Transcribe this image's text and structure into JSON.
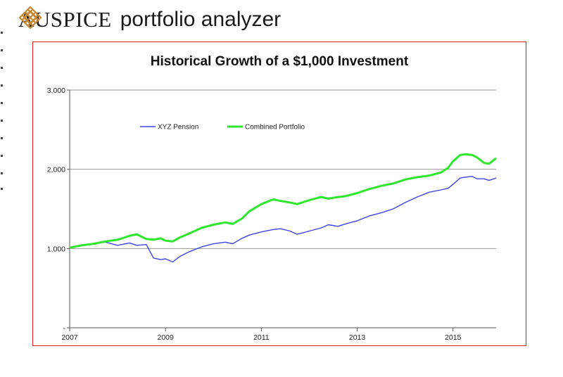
{
  "header": {
    "brand": "AUSPICE",
    "subtitle": "portfolio analyzer",
    "logo_icon": "knot-emblem-icon",
    "logo_color": "#c8862e"
  },
  "colors": {
    "frame": "#e21b1b",
    "grid": "#9a9a9a",
    "axis": "#555555"
  },
  "chart_data": {
    "type": "line",
    "title": "Historical Growth of a $1,000 Investment",
    "xlabel": "",
    "ylabel": "",
    "xlim": [
      2007,
      2015.9
    ],
    "ylim": [
      0,
      3000
    ],
    "yticks": [
      {
        "value": 0,
        "label": "-"
      },
      {
        "value": 1000,
        "label": "1,000"
      },
      {
        "value": 2000,
        "label": "2,000"
      },
      {
        "value": 3000,
        "label": "3,000"
      }
    ],
    "xticks": [
      {
        "value": 2007,
        "label": "2007"
      },
      {
        "value": 2009,
        "label": "2009"
      },
      {
        "value": 2011,
        "label": "2011"
      },
      {
        "value": 2013,
        "label": "2013"
      },
      {
        "value": 2015,
        "label": "2015"
      }
    ],
    "grid": true,
    "legend": "top-left",
    "series": [
      {
        "name": "XYZ Pension",
        "color": "#3b45e6",
        "x": [
          2007.0,
          2007.25,
          2007.5,
          2007.75,
          2008.0,
          2008.25,
          2008.4,
          2008.6,
          2008.75,
          2008.9,
          2009.0,
          2009.15,
          2009.3,
          2009.5,
          2009.75,
          2010.0,
          2010.25,
          2010.4,
          2010.6,
          2010.75,
          2011.0,
          2011.25,
          2011.4,
          2011.6,
          2011.75,
          2012.0,
          2012.25,
          2012.4,
          2012.6,
          2012.75,
          2013.0,
          2013.25,
          2013.5,
          2013.75,
          2014.0,
          2014.25,
          2014.5,
          2014.75,
          2014.9,
          2015.0,
          2015.15,
          2015.25,
          2015.4,
          2015.5,
          2015.65,
          2015.75,
          2015.9
        ],
        "values": [
          1010,
          1040,
          1060,
          1080,
          1040,
          1070,
          1040,
          1050,
          880,
          860,
          870,
          830,
          900,
          960,
          1020,
          1060,
          1080,
          1060,
          1130,
          1170,
          1210,
          1240,
          1250,
          1220,
          1180,
          1220,
          1260,
          1300,
          1280,
          1310,
          1350,
          1410,
          1450,
          1500,
          1580,
          1650,
          1710,
          1740,
          1760,
          1810,
          1890,
          1900,
          1910,
          1880,
          1880,
          1860,
          1890
        ]
      },
      {
        "name": "Combined Portfolio",
        "color": "#2ee82e",
        "x": [
          2007.0,
          2007.25,
          2007.5,
          2007.75,
          2008.0,
          2008.25,
          2008.4,
          2008.6,
          2008.75,
          2008.9,
          2009.0,
          2009.15,
          2009.3,
          2009.5,
          2009.75,
          2010.0,
          2010.25,
          2010.4,
          2010.6,
          2010.75,
          2011.0,
          2011.25,
          2011.4,
          2011.6,
          2011.75,
          2012.0,
          2012.25,
          2012.4,
          2012.6,
          2012.75,
          2013.0,
          2013.25,
          2013.5,
          2013.75,
          2014.0,
          2014.25,
          2014.5,
          2014.75,
          2014.9,
          2015.0,
          2015.15,
          2015.25,
          2015.4,
          2015.5,
          2015.65,
          2015.75,
          2015.9
        ],
        "values": [
          1010,
          1040,
          1060,
          1090,
          1110,
          1160,
          1180,
          1120,
          1110,
          1130,
          1100,
          1090,
          1140,
          1190,
          1260,
          1300,
          1330,
          1310,
          1380,
          1470,
          1560,
          1620,
          1600,
          1580,
          1560,
          1610,
          1650,
          1630,
          1650,
          1660,
          1700,
          1750,
          1790,
          1820,
          1870,
          1900,
          1920,
          1960,
          2020,
          2100,
          2180,
          2190,
          2180,
          2150,
          2080,
          2070,
          2140
        ]
      }
    ]
  }
}
